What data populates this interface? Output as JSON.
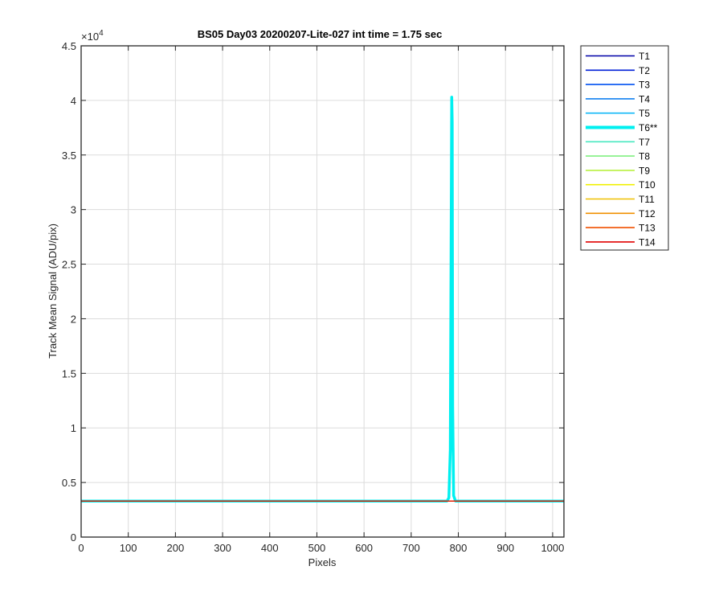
{
  "chart_data": {
    "type": "line",
    "title": "BS05 Day03 20200207-Lite-027 int time = 1.75 sec",
    "xlabel": "Pixels",
    "ylabel": "Track Mean Signal (ADU/pix)",
    "y_exponent_label": "×10",
    "y_exponent_power": "4",
    "xlim": [
      0,
      1024
    ],
    "ylim": [
      0,
      45000
    ],
    "x_ticks": [
      0,
      100,
      200,
      300,
      400,
      500,
      600,
      700,
      800,
      900,
      1000
    ],
    "y_ticks": [
      0,
      5000,
      10000,
      15000,
      20000,
      25000,
      30000,
      35000,
      40000,
      45000
    ],
    "x_tick_labels": [
      "0",
      "100",
      "200",
      "300",
      "400",
      "500",
      "600",
      "700",
      "800",
      "900",
      "1000"
    ],
    "y_tick_labels": [
      "0",
      "0.5",
      "1",
      "1.5",
      "2",
      "2.5",
      "3",
      "3.5",
      "4",
      "4.5"
    ],
    "grid": true,
    "legend_position": "outside-right-top",
    "baseline_value": 3300,
    "series": [
      {
        "name": "T1",
        "color": "#0000a8",
        "highlight": false
      },
      {
        "name": "T2",
        "color": "#0020d8",
        "highlight": false
      },
      {
        "name": "T3",
        "color": "#0050f0",
        "highlight": false
      },
      {
        "name": "T4",
        "color": "#1080f0",
        "highlight": false
      },
      {
        "name": "T5",
        "color": "#10b8f8",
        "highlight": false
      },
      {
        "name": "T6**",
        "color": "#00f0f0",
        "highlight": true,
        "peak": {
          "x": [
            776,
            780,
            783,
            785,
            786,
            787,
            788,
            790,
            794
          ],
          "y": [
            3300,
            3600,
            8000,
            30000,
            40300,
            38000,
            12000,
            3800,
            3300
          ]
        }
      },
      {
        "name": "T7",
        "color": "#48e8c0",
        "highlight": false
      },
      {
        "name": "T8",
        "color": "#80f080",
        "highlight": false
      },
      {
        "name": "T9",
        "color": "#b8f040",
        "highlight": false
      },
      {
        "name": "T10",
        "color": "#f0f000",
        "highlight": false
      },
      {
        "name": "T11",
        "color": "#f0c000",
        "highlight": false
      },
      {
        "name": "T12",
        "color": "#f09000",
        "highlight": false
      },
      {
        "name": "T13",
        "color": "#f05000",
        "highlight": false
      },
      {
        "name": "T14",
        "color": "#e00000",
        "highlight": false
      }
    ]
  }
}
